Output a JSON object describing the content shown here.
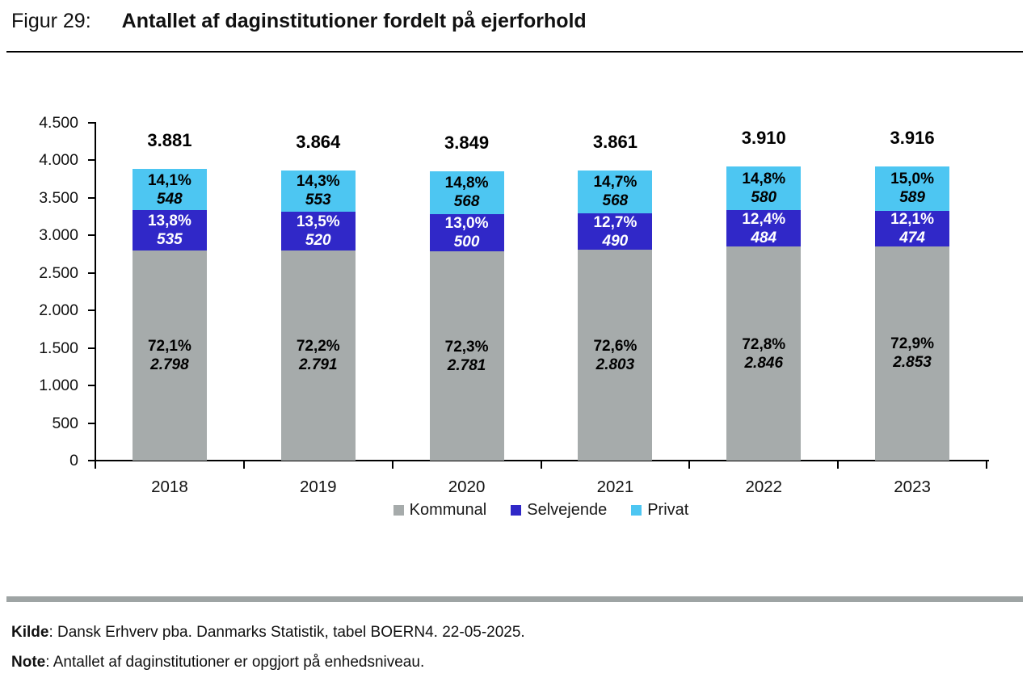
{
  "header": {
    "figure_label": "Figur 29:",
    "title": "Antallet af daginstitutioner fordelt på ejerforhold"
  },
  "chart_data": {
    "type": "bar",
    "stacked": true,
    "title": "Antallet af daginstitutioner fordelt på ejerforhold",
    "categories": [
      "2018",
      "2019",
      "2020",
      "2021",
      "2022",
      "2023"
    ],
    "series": [
      {
        "name": "Kommunal",
        "color": "#A6ABAB",
        "label_color": "#000000",
        "values": [
          2798,
          2791,
          2781,
          2803,
          2846,
          2853
        ],
        "value_labels": [
          "2.798",
          "2.791",
          "2.781",
          "2.803",
          "2.846",
          "2.853"
        ],
        "pct_labels": [
          "72,1%",
          "72,2%",
          "72,3%",
          "72,6%",
          "72,8%",
          "72,9%"
        ]
      },
      {
        "name": "Selvejende",
        "color": "#3028C8",
        "label_color": "#FFFFFF",
        "values": [
          535,
          520,
          500,
          490,
          484,
          474
        ],
        "value_labels": [
          "535",
          "520",
          "500",
          "490",
          "484",
          "474"
        ],
        "pct_labels": [
          "13,8%",
          "13,5%",
          "13,0%",
          "12,7%",
          "12,4%",
          "12,1%"
        ]
      },
      {
        "name": "Privat",
        "color": "#4DC6F2",
        "label_color": "#000000",
        "values": [
          548,
          553,
          568,
          568,
          580,
          589
        ],
        "value_labels": [
          "548",
          "553",
          "568",
          "568",
          "580",
          "589"
        ],
        "pct_labels": [
          "14,1%",
          "14,3%",
          "14,8%",
          "14,7%",
          "14,8%",
          "15,0%"
        ]
      }
    ],
    "totals": [
      3881,
      3864,
      3849,
      3861,
      3910,
      3916
    ],
    "total_labels": [
      "3.881",
      "3.864",
      "3.849",
      "3.861",
      "3.910",
      "3.916"
    ],
    "ylim": [
      0,
      4500
    ],
    "y_tick_step": 500,
    "y_tick_labels": [
      "4.500",
      "4.000",
      "3.500",
      "3.000",
      "2.500",
      "2.000",
      "1.500",
      "1.000",
      "500",
      "0"
    ],
    "grid": false,
    "legend": {
      "position": "bottom",
      "items": [
        "Kommunal",
        "Selvejende",
        "Privat"
      ]
    }
  },
  "footer": {
    "source_label": "Kilde",
    "source_text": ": Dansk Erhverv pba. Danmarks Statistik, tabel BOERN4. 22-05-2025.",
    "note_label": "Note",
    "note_text": ": Antallet af daginstitutioner er opgjort på enhedsniveau."
  }
}
